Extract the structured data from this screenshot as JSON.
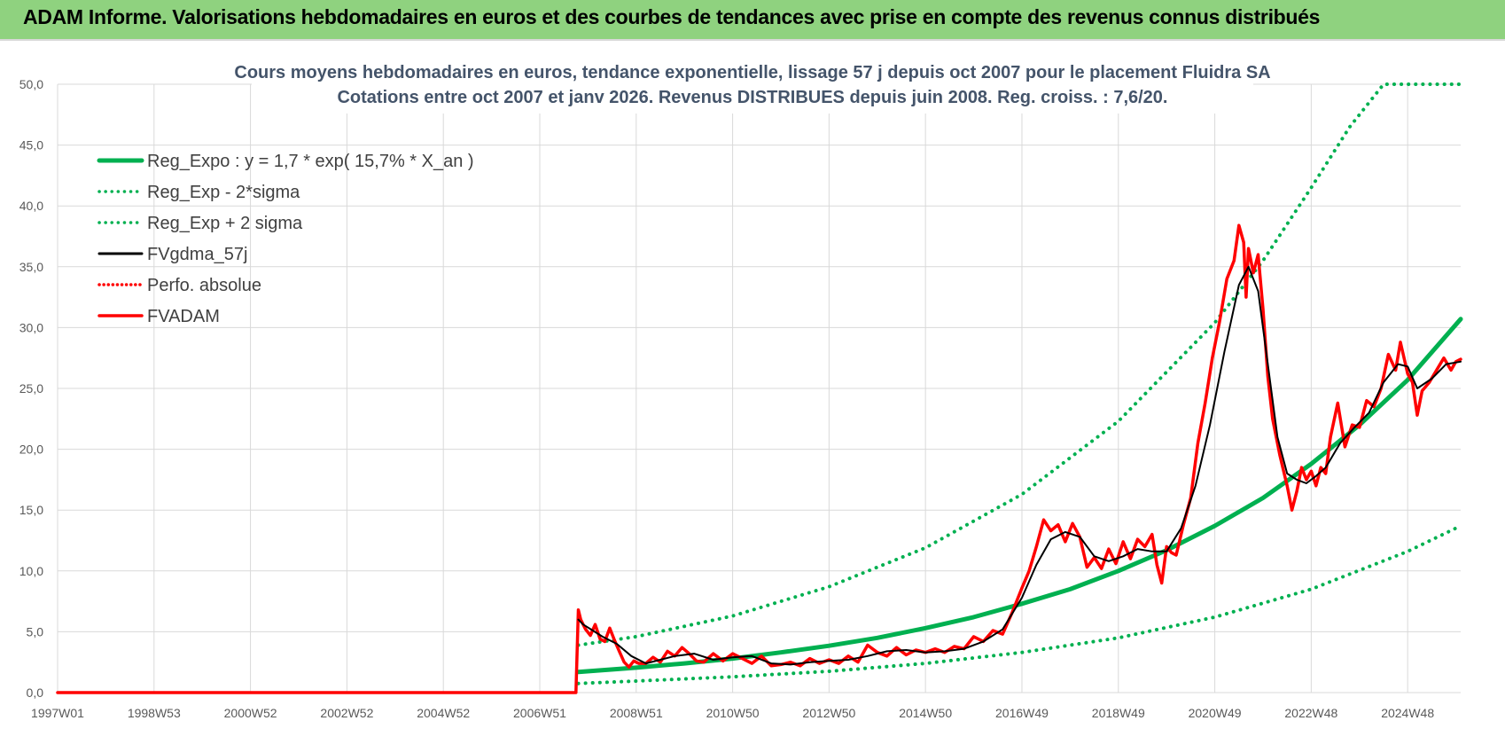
{
  "banner": {
    "title": "ADAM Informe. Valorisations hebdomadaires en euros et des courbes de tendances avec prise en compte des revenus connus distribués"
  },
  "chart_data": {
    "type": "line",
    "title": "Cours moyens hebdomadaires en euros, tendance exponentielle, lissage 57 j depuis oct 2007 pour le placement Fluidra SA",
    "subtitle": "Cotations entre oct 2007 et janv 2026. Revenus DISTRIBUES depuis juin 2008. Reg. croiss. : 7,6/20.",
    "xlabel": "",
    "ylabel": "",
    "x_tick_labels": [
      "1997W01",
      "1998W53",
      "2000W52",
      "2002W52",
      "2004W52",
      "2006W51",
      "2008W51",
      "2010W50",
      "2012W50",
      "2014W50",
      "2016W49",
      "2018W49",
      "2020W49",
      "2022W48",
      "2024W48"
    ],
    "x_tick_years": [
      1997.0,
      1999.0,
      2001.0,
      2003.0,
      2005.0,
      2007.0,
      2009.0,
      2011.0,
      2013.0,
      2015.0,
      2017.0,
      2019.0,
      2021.0,
      2023.0,
      2025.0
    ],
    "xlim": [
      1997.0,
      2026.1
    ],
    "ylim": [
      0,
      50
    ],
    "y_ticks": [
      "0,0",
      "5,0",
      "10,0",
      "15,0",
      "20,0",
      "25,0",
      "30,0",
      "35,0",
      "40,0",
      "45,0",
      "50,0"
    ],
    "grid": true,
    "legend_position": "top-left",
    "colors": {
      "green": "#00b050",
      "black": "#000000",
      "red": "#ff0000",
      "grid": "#d9d9d9"
    },
    "series": [
      {
        "name": "Reg_Expo : y = 1,7 * exp( 15,7% *  X_an )",
        "style": "solid-green-thick",
        "x": [
          2007.8,
          2009,
          2010,
          2011,
          2012,
          2013,
          2014,
          2015,
          2016,
          2017,
          2018,
          2019,
          2020,
          2021,
          2022,
          2023,
          2024,
          2025,
          2026.1
        ],
        "y": [
          1.7,
          2.05,
          2.4,
          2.8,
          3.3,
          3.85,
          4.5,
          5.3,
          6.2,
          7.3,
          8.5,
          10.0,
          11.7,
          13.7,
          16.0,
          18.8,
          22.0,
          25.7,
          30.7
        ]
      },
      {
        "name": "Reg_Exp - 2*sigma",
        "style": "dotted-green",
        "x": [
          2007.8,
          2009,
          2011,
          2013,
          2015,
          2017,
          2019,
          2021,
          2023,
          2025,
          2026.1
        ],
        "y": [
          0.75,
          0.95,
          1.3,
          1.75,
          2.4,
          3.3,
          4.5,
          6.2,
          8.5,
          11.6,
          13.7
        ]
      },
      {
        "name": "Reg_Exp + 2 sigma",
        "style": "dotted-green",
        "x": [
          2007.8,
          2009,
          2011,
          2013,
          2015,
          2017,
          2019,
          2021,
          2022,
          2023,
          2023.8,
          2024.5,
          2026.1
        ],
        "y": [
          3.9,
          4.6,
          6.3,
          8.7,
          11.9,
          16.3,
          22.3,
          30.4,
          35.5,
          41.5,
          46.5,
          50.0,
          50.0
        ]
      },
      {
        "name": "FVgdma_57j",
        "style": "solid-black",
        "x": [
          2007.8,
          2007.9,
          2008.1,
          2008.3,
          2008.6,
          2008.9,
          2009.2,
          2009.5,
          2009.8,
          2010.2,
          2010.6,
          2011.0,
          2011.4,
          2011.8,
          2012.2,
          2012.6,
          2013.0,
          2013.4,
          2013.8,
          2014.2,
          2014.6,
          2015.0,
          2015.4,
          2015.8,
          2016.2,
          2016.6,
          2017.0,
          2017.3,
          2017.6,
          2017.9,
          2018.2,
          2018.5,
          2018.8,
          2019.1,
          2019.4,
          2019.7,
          2020.0,
          2020.3,
          2020.6,
          2020.9,
          2021.2,
          2021.5,
          2021.7,
          2021.9,
          2022.1,
          2022.3,
          2022.5,
          2022.7,
          2022.9,
          2023.1,
          2023.3,
          2023.6,
          2023.9,
          2024.2,
          2024.5,
          2024.8,
          2025.0,
          2025.2,
          2025.5,
          2025.8,
          2026.1
        ],
        "y": [
          6.0,
          5.6,
          5.1,
          4.6,
          4.0,
          3.0,
          2.4,
          2.7,
          3.0,
          3.2,
          2.7,
          2.9,
          3.0,
          2.4,
          2.3,
          2.5,
          2.6,
          2.7,
          3.0,
          3.4,
          3.5,
          3.3,
          3.4,
          3.6,
          4.2,
          5.2,
          7.8,
          10.5,
          12.6,
          13.2,
          12.8,
          11.2,
          10.8,
          11.2,
          11.8,
          11.6,
          11.6,
          13.5,
          17.0,
          22.0,
          28.0,
          33.5,
          35.0,
          33.0,
          27.0,
          21.0,
          18.0,
          17.5,
          17.2,
          17.8,
          18.5,
          20.5,
          21.8,
          23.0,
          25.5,
          27.0,
          26.8,
          25.0,
          25.8,
          27.0,
          27.2
        ]
      },
      {
        "name": "Perfo. absolue",
        "style": "dotted-red",
        "x": [],
        "y": []
      },
      {
        "name": "FVADAM",
        "style": "solid-red-thick",
        "x": [
          1997.0,
          2007.75,
          2007.8,
          2007.85,
          2007.95,
          2008.05,
          2008.15,
          2008.25,
          2008.35,
          2008.45,
          2008.55,
          2008.65,
          2008.75,
          2008.85,
          2008.95,
          2009.05,
          2009.2,
          2009.35,
          2009.5,
          2009.65,
          2009.8,
          2009.95,
          2010.1,
          2010.25,
          2010.4,
          2010.6,
          2010.8,
          2011.0,
          2011.2,
          2011.4,
          2011.6,
          2011.8,
          2012.0,
          2012.2,
          2012.4,
          2012.6,
          2012.8,
          2013.0,
          2013.2,
          2013.4,
          2013.6,
          2013.8,
          2014.0,
          2014.2,
          2014.4,
          2014.6,
          2014.8,
          2015.0,
          2015.2,
          2015.4,
          2015.6,
          2015.8,
          2016.0,
          2016.2,
          2016.4,
          2016.6,
          2016.8,
          2017.0,
          2017.15,
          2017.3,
          2017.45,
          2017.6,
          2017.75,
          2017.9,
          2018.05,
          2018.2,
          2018.35,
          2018.5,
          2018.65,
          2018.8,
          2018.95,
          2019.1,
          2019.25,
          2019.4,
          2019.55,
          2019.7,
          2019.8,
          2019.9,
          2020.0,
          2020.1,
          2020.2,
          2020.35,
          2020.5,
          2020.65,
          2020.8,
          2020.95,
          2021.1,
          2021.25,
          2021.4,
          2021.5,
          2021.6,
          2021.65,
          2021.7,
          2021.8,
          2021.9,
          2022.0,
          2022.1,
          2022.2,
          2022.35,
          2022.5,
          2022.6,
          2022.7,
          2022.8,
          2022.9,
          2023.0,
          2023.1,
          2023.2,
          2023.3,
          2023.4,
          2023.55,
          2023.7,
          2023.85,
          2024.0,
          2024.15,
          2024.3,
          2024.45,
          2024.6,
          2024.75,
          2024.85,
          2025.0,
          2025.1,
          2025.2,
          2025.3,
          2025.45,
          2025.6,
          2025.75,
          2025.9,
          2026.0,
          2026.1
        ],
        "y": [
          0,
          0,
          6.8,
          6.0,
          5.2,
          4.7,
          5.6,
          4.4,
          4.2,
          5.3,
          4.3,
          3.4,
          2.5,
          2.1,
          2.6,
          2.4,
          2.4,
          2.9,
          2.5,
          3.4,
          3.0,
          3.7,
          3.2,
          2.6,
          2.5,
          3.2,
          2.6,
          3.2,
          2.8,
          2.4,
          3.0,
          2.2,
          2.3,
          2.5,
          2.2,
          2.8,
          2.4,
          2.7,
          2.4,
          3.0,
          2.5,
          3.9,
          3.3,
          3.0,
          3.7,
          3.1,
          3.5,
          3.3,
          3.6,
          3.3,
          3.8,
          3.6,
          4.6,
          4.2,
          5.1,
          4.8,
          6.6,
          8.6,
          10.0,
          12.0,
          14.2,
          13.3,
          13.8,
          12.4,
          13.9,
          12.8,
          10.3,
          11.1,
          10.2,
          11.8,
          10.6,
          12.4,
          11.0,
          12.6,
          12.0,
          13.0,
          10.5,
          9.0,
          12.0,
          11.5,
          11.3,
          13.8,
          16.0,
          20.5,
          23.8,
          27.5,
          30.5,
          34.0,
          35.5,
          38.4,
          37.0,
          32.5,
          36.5,
          34.5,
          36.0,
          31.5,
          26.0,
          22.5,
          19.5,
          17.0,
          15.0,
          16.5,
          18.5,
          17.5,
          18.2,
          17.0,
          18.5,
          18.0,
          21.0,
          23.8,
          20.2,
          22.0,
          21.8,
          24.0,
          23.5,
          25.0,
          27.8,
          26.5,
          28.8,
          26.2,
          25.5,
          22.8,
          24.8,
          25.5,
          26.5,
          27.5,
          26.5,
          27.2,
          27.4
        ]
      }
    ]
  }
}
